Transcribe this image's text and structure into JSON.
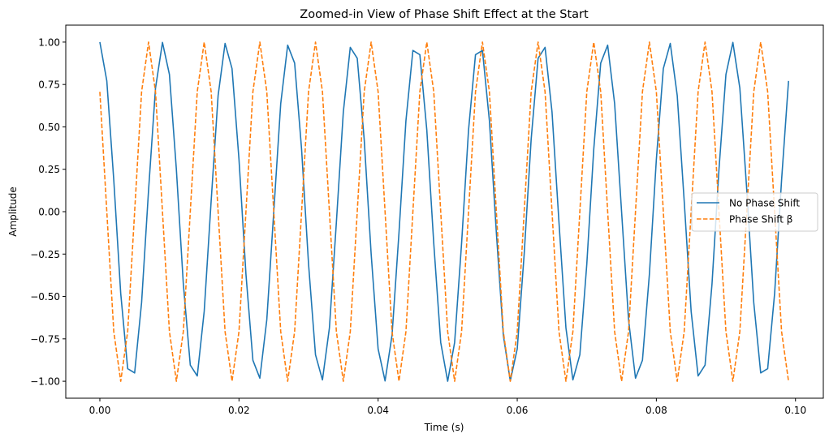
{
  "chart_data": {
    "type": "line",
    "title": "Zoomed-in View of Phase Shift Effect at the Start",
    "xlabel": "Time (s)",
    "ylabel": "Amplitude",
    "xlim": [
      -0.0049,
      0.104
    ],
    "ylim": [
      -1.1,
      1.1
    ],
    "xticks": [
      0.0,
      0.02,
      0.04,
      0.06,
      0.08,
      0.1
    ],
    "xtick_labels": [
      "0.00",
      "0.02",
      "0.04",
      "0.06",
      "0.08",
      "0.10"
    ],
    "yticks": [
      -1.0,
      -0.75,
      -0.5,
      -0.25,
      0.0,
      0.25,
      0.5,
      0.75,
      1.0
    ],
    "ytick_labels": [
      "−1.00",
      "−0.75",
      "−0.50",
      "−0.25",
      "0.00",
      "0.25",
      "0.50",
      "0.75",
      "1.00"
    ],
    "grid": false,
    "legend_position": "center-right",
    "x": [
      0.0,
      0.001,
      0.002,
      0.003,
      0.004,
      0.005,
      0.006,
      0.007,
      0.008,
      0.009,
      0.01,
      0.011,
      0.012,
      0.013,
      0.014,
      0.015,
      0.016,
      0.017,
      0.018,
      0.019,
      0.02,
      0.021,
      0.022,
      0.023,
      0.024,
      0.025,
      0.026,
      0.027,
      0.028,
      0.029,
      0.03,
      0.031,
      0.032,
      0.033,
      0.034,
      0.035,
      0.036,
      0.037,
      0.038,
      0.039,
      0.04,
      0.041,
      0.042,
      0.043,
      0.044,
      0.045,
      0.046,
      0.047,
      0.048,
      0.049,
      0.05,
      0.051,
      0.052,
      0.053,
      0.054,
      0.055,
      0.056,
      0.057,
      0.058,
      0.059,
      0.06,
      0.061,
      0.062,
      0.063,
      0.064,
      0.065,
      0.066,
      0.067,
      0.068,
      0.069,
      0.07,
      0.071,
      0.072,
      0.073,
      0.074,
      0.075,
      0.076,
      0.077,
      0.078,
      0.079,
      0.08,
      0.081,
      0.082,
      0.083,
      0.084,
      0.085,
      0.086,
      0.087,
      0.088,
      0.089,
      0.09,
      0.091,
      0.092,
      0.093,
      0.094,
      0.095,
      0.096,
      0.097,
      0.098,
      0.099
    ],
    "series": [
      {
        "name": "No Phase Shift",
        "color": "#1f77b4",
        "dash": "solid",
        "values": [
          1.0,
          0.771,
          0.187,
          -0.482,
          -0.926,
          -0.951,
          -0.536,
          0.125,
          0.729,
          0.998,
          0.809,
          0.249,
          -0.426,
          -0.905,
          -0.969,
          -0.588,
          0.063,
          0.685,
          0.992,
          0.844,
          0.309,
          -0.368,
          -0.876,
          -0.982,
          -0.637,
          0.0,
          0.637,
          0.982,
          0.876,
          0.368,
          -0.309,
          -0.844,
          -0.992,
          -0.685,
          -0.063,
          0.588,
          0.969,
          0.905,
          0.426,
          -0.249,
          -0.809,
          -0.998,
          -0.729,
          -0.125,
          0.536,
          0.951,
          0.926,
          0.482,
          -0.187,
          -0.771,
          -1.0,
          -0.771,
          -0.187,
          0.482,
          0.926,
          0.951,
          0.536,
          -0.125,
          -0.729,
          -0.998,
          -0.809,
          -0.249,
          0.426,
          0.905,
          0.969,
          0.588,
          -0.063,
          -0.685,
          -0.992,
          -0.844,
          -0.309,
          0.368,
          0.876,
          0.982,
          0.637,
          0.0,
          -0.637,
          -0.982,
          -0.876,
          -0.368,
          0.309,
          0.844,
          0.992,
          0.685,
          0.063,
          -0.588,
          -0.969,
          -0.905,
          -0.426,
          0.249,
          0.809,
          0.998,
          0.729,
          0.125,
          -0.536,
          -0.951,
          -0.926,
          -0.482,
          0.187,
          0.771
        ]
      },
      {
        "name": "Phase Shift β",
        "color": "#ff7f0e",
        "dash": "dashed",
        "values": [
          0.707,
          0.0,
          -0.707,
          -1.0,
          -0.707,
          0.0,
          0.707,
          1.0,
          0.707,
          0.0,
          -0.707,
          -1.0,
          -0.707,
          0.0,
          0.707,
          1.0,
          0.707,
          0.0,
          -0.707,
          -1.0,
          -0.707,
          0.0,
          0.707,
          1.0,
          0.707,
          0.0,
          -0.707,
          -1.0,
          -0.707,
          0.0,
          0.707,
          1.0,
          0.707,
          0.0,
          -0.707,
          -1.0,
          -0.707,
          0.0,
          0.707,
          1.0,
          0.707,
          0.0,
          -0.707,
          -1.0,
          -0.707,
          0.0,
          0.707,
          1.0,
          0.707,
          0.0,
          -0.707,
          -1.0,
          -0.707,
          0.0,
          0.707,
          1.0,
          0.707,
          0.0,
          -0.707,
          -1.0,
          -0.707,
          0.0,
          0.707,
          1.0,
          0.707,
          0.0,
          -0.707,
          -1.0,
          -0.707,
          0.0,
          0.707,
          1.0,
          0.707,
          0.0,
          -0.707,
          -1.0,
          -0.707,
          0.0,
          0.707,
          1.0,
          0.707,
          0.0,
          -0.707,
          -1.0,
          -0.707,
          0.0,
          0.707,
          1.0,
          0.707,
          0.0,
          -0.707,
          -1.0,
          -0.707,
          0.0,
          0.707,
          1.0,
          0.707,
          0.0,
          -0.707,
          -1.0
        ]
      }
    ]
  }
}
